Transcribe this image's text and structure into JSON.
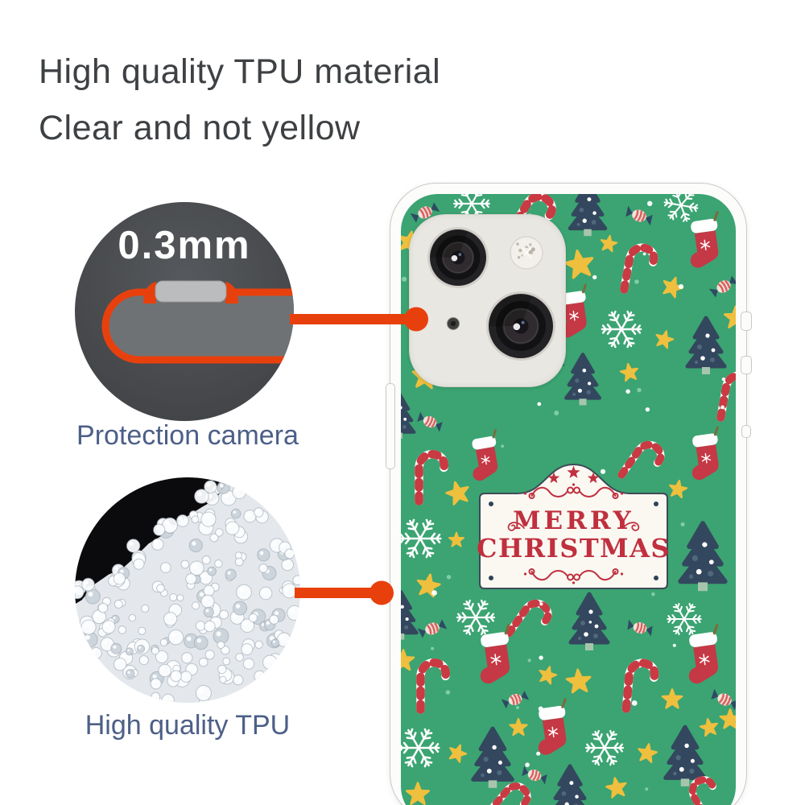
{
  "header": {
    "line1": "High quality TPU material",
    "line2": "Clear and not yellow",
    "color": "#3E4144"
  },
  "callouts": {
    "thickness": {
      "value": "0.3mm",
      "caption": "Protection camera"
    },
    "material": {
      "caption": "High quality TPU"
    },
    "caption_color": "#4C5F87",
    "accent_orange": "#E8400D",
    "diagram": {
      "body_gray": "#6F7275",
      "button_gray": "#BABCBE",
      "circle_bg": "#47494C"
    }
  },
  "beads": {
    "seed": 7,
    "count": 235,
    "base": "#E4E8EC",
    "shadow_black": "#0B0B0D"
  },
  "case": {
    "green": "#3BA472",
    "edge": "#FCFCFB",
    "edge_stroke": "#C9C9C7",
    "module_bg": "#E9E7E2",
    "icons": [
      "camera-lens-icon",
      "flash-icon",
      "microphone-icon"
    ]
  },
  "sign": {
    "line1": "MERRY",
    "line2": "CHRISTMAS",
    "text_color": "#C0303E",
    "bg": "#FBF8F2",
    "border": "#3E4A58",
    "rivet_color": "#2E4257",
    "star_count": 3
  },
  "pattern_colors": {
    "tree": "#33475E",
    "tree_dot_dark": "#50677C",
    "trunk": "#A7C5AC",
    "star": "#EFBF3E",
    "stocking": "#C53845",
    "cane_red": "#C93A43",
    "snow": "#FFFFFF",
    "candy_body": "#F3E3DC",
    "candy_stripe": "#D8625F",
    "candy_wrap": "#2E4A63",
    "dot_white": "#FFFFFF",
    "dot_green": "#8FD4AE"
  },
  "motifs": [
    [
      "candy",
      527,
      263,
      0.85,
      -25
    ],
    [
      "snow",
      585,
      252,
      0.95,
      0
    ],
    [
      "cane",
      658,
      268,
      1.05,
      30
    ],
    [
      "tree",
      729,
      258,
      0.95,
      0
    ],
    [
      "candy",
      793,
      267,
      0.85,
      20
    ],
    [
      "snow",
      845,
      254,
      0.9,
      10
    ],
    [
      "star",
      507,
      300,
      0.85,
      15
    ],
    [
      "star",
      755,
      302,
      0.65,
      10
    ],
    [
      "stock",
      877,
      303,
      1.0,
      -8
    ],
    [
      "star",
      719,
      328,
      1.1,
      -10
    ],
    [
      "cane",
      790,
      333,
      1.0,
      10
    ],
    [
      "star",
      834,
      356,
      0.8,
      20
    ],
    [
      "candy",
      898,
      355,
      0.85,
      -30
    ],
    [
      "stock",
      714,
      391,
      0.95,
      -8
    ],
    [
      "star",
      913,
      394,
      0.9,
      0
    ],
    [
      "snow",
      771,
      408,
      1.05,
      0
    ],
    [
      "star",
      824,
      421,
      0.7,
      15
    ],
    [
      "tree",
      876,
      428,
      1.0,
      0
    ],
    [
      "candy",
      684,
      452,
      0.75,
      -15
    ],
    [
      "tree",
      723,
      470,
      0.9,
      0
    ],
    [
      "star",
      527,
      467,
      1.0,
      5
    ],
    [
      "star",
      781,
      462,
      0.7,
      -10
    ],
    [
      "candy",
      533,
      523,
      0.8,
      25
    ],
    [
      "cane",
      531,
      592,
      1.05,
      0
    ],
    [
      "snow",
      521,
      668,
      1.1,
      0
    ],
    [
      "star",
      531,
      727,
      0.9,
      10
    ],
    [
      "tree",
      495,
      515,
      0.8,
      0
    ],
    [
      "cane",
      910,
      492,
      1.0,
      10
    ],
    [
      "stock",
      878,
      568,
      0.95,
      -8
    ],
    [
      "cane",
      795,
      573,
      0.95,
      35
    ],
    [
      "stock",
      604,
      570,
      0.9,
      -10
    ],
    [
      "star",
      568,
      612,
      0.9,
      -15
    ],
    [
      "star",
      841,
      607,
      0.7,
      10
    ],
    [
      "tree",
      872,
      690,
      1.2,
      0
    ],
    [
      "star",
      566,
      670,
      0.6,
      0
    ],
    [
      "tree",
      497,
      763,
      0.85,
      0
    ],
    [
      "candy",
      536,
      780,
      0.85,
      -20
    ],
    [
      "snow",
      590,
      766,
      1.0,
      0
    ],
    [
      "cane",
      655,
      770,
      0.95,
      35
    ],
    [
      "tree",
      731,
      771,
      1.0,
      0
    ],
    [
      "candy",
      794,
      779,
      0.8,
      15
    ],
    [
      "snow",
      849,
      768,
      0.9,
      0
    ],
    [
      "stock",
      617,
      818,
      1.05,
      -8
    ],
    [
      "star",
      500,
      820,
      0.85,
      0
    ],
    [
      "cane",
      533,
      851,
      1.05,
      0
    ],
    [
      "star",
      679,
      838,
      0.7,
      15
    ],
    [
      "star",
      718,
      846,
      0.95,
      -5
    ],
    [
      "candy",
      639,
      868,
      0.8,
      -20
    ],
    [
      "cane",
      791,
      851,
      1.05,
      5
    ],
    [
      "star",
      834,
      868,
      0.8,
      0
    ],
    [
      "candy",
      899,
      868,
      0.85,
      25
    ],
    [
      "stock",
      876,
      818,
      1.05,
      -8
    ],
    [
      "star",
      906,
      893,
      0.8,
      0
    ],
    [
      "snow",
      519,
      928,
      1.1,
      0
    ],
    [
      "tree",
      611,
      940,
      1.05,
      0
    ],
    [
      "star",
      643,
      903,
      0.7,
      0
    ],
    [
      "stock",
      688,
      908,
      1.0,
      -8
    ],
    [
      "snow",
      750,
      928,
      1.0,
      0
    ],
    [
      "star",
      803,
      935,
      0.75,
      10
    ],
    [
      "tree",
      850,
      938,
      1.05,
      0
    ],
    [
      "star",
      880,
      903,
      0.7,
      -10
    ],
    [
      "star",
      567,
      935,
      0.7,
      20
    ],
    [
      "star",
      518,
      986,
      0.9,
      0
    ],
    [
      "candy",
      663,
      962,
      0.8,
      20
    ],
    [
      "tree",
      707,
      983,
      0.95,
      0
    ],
    [
      "star",
      765,
      978,
      0.8,
      -10
    ],
    [
      "cane",
      630,
      995,
      0.9,
      40
    ],
    [
      "cane",
      875,
      993,
      0.9,
      -30
    ]
  ]
}
